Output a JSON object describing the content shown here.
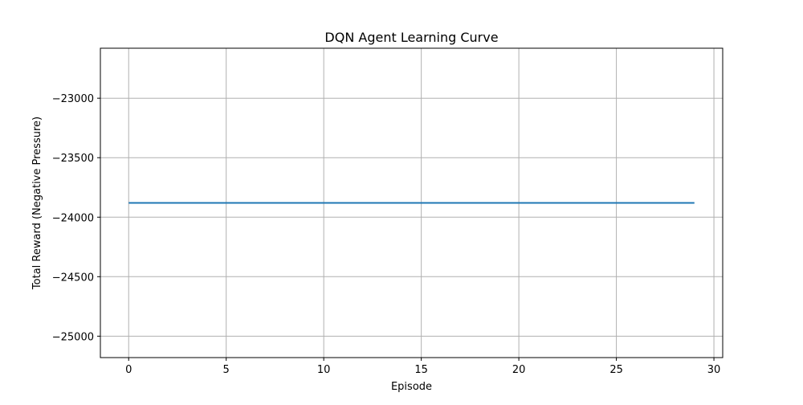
{
  "chart_data": {
    "type": "line",
    "title": "DQN Agent Learning Curve",
    "xlabel": "Episode",
    "ylabel": "Total Reward (Negative Pressure)",
    "xlim": [
      -1.45,
      30.45
    ],
    "ylim": [
      -25180,
      -22580
    ],
    "xticks": [
      0,
      5,
      10,
      15,
      20,
      25,
      30
    ],
    "yticks": [
      -25000,
      -24500,
      -24000,
      -23500,
      -23000
    ],
    "xtick_labels": [
      "0",
      "5",
      "10",
      "15",
      "20",
      "25",
      "30"
    ],
    "ytick_labels": [
      "−25000",
      "−24500",
      "−24000",
      "−23500",
      "−23000"
    ],
    "grid": true,
    "series": [
      {
        "color": "#1f77b4",
        "x": [
          0,
          1,
          2,
          3,
          4,
          5,
          6,
          7,
          8,
          9,
          10,
          11,
          12,
          13,
          14,
          15,
          16,
          17,
          18,
          19,
          20,
          21,
          22,
          23,
          24,
          25,
          26,
          27,
          28,
          29
        ],
        "values": [
          -23880,
          -23880,
          -23880,
          -23880,
          -23880,
          -23880,
          -23880,
          -23880,
          -23880,
          -23880,
          -23880,
          -23880,
          -23880,
          -23880,
          -23880,
          -23880,
          -23880,
          -23880,
          -23880,
          -23880,
          -23880,
          -23880,
          -23880,
          -23880,
          -23880,
          -23880,
          -23880,
          -23880,
          -23880,
          -23880
        ]
      }
    ]
  },
  "colors": {
    "grid": "#b0b0b0",
    "axes": "#000000",
    "line": "#1f77b4"
  }
}
